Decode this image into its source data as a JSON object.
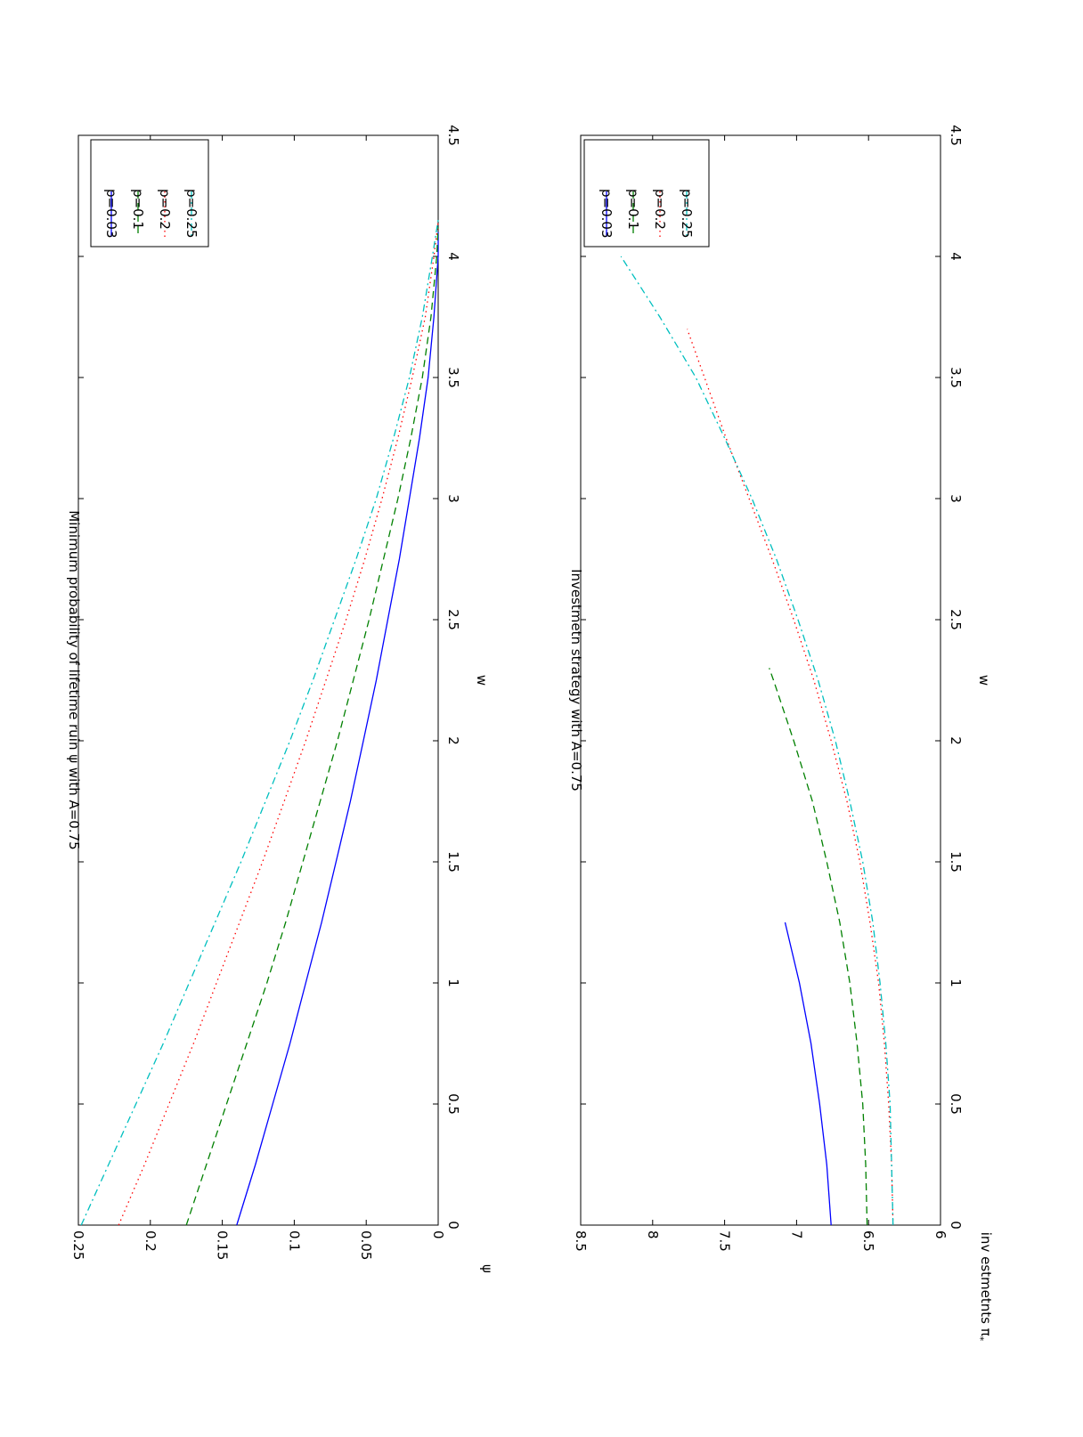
{
  "colors": {
    "p003": "#0000ff",
    "p01": "#008000",
    "p02": "#ff0000",
    "p025": "#00bfbf",
    "axes": "#000000",
    "background": "#ffffff"
  },
  "figure_orientation": "rotated 90 degrees clockwise (page is a landscape figure printed in portrait)",
  "chart_data": [
    {
      "type": "line",
      "title": "Minimum probability of lifetime ruin ψ with A=0.75",
      "xlabel": "w",
      "ylabel": "ψ",
      "xlim": [
        0,
        4.5
      ],
      "ylim": [
        0,
        0.25
      ],
      "xticks": [
        "0",
        "0.5",
        "1",
        "1.5",
        "2",
        "2.5",
        "3",
        "3.5",
        "4",
        "4.5"
      ],
      "yticks": [
        "0",
        "0.05",
        "0.1",
        "0.15",
        "0.2",
        "0.25"
      ],
      "grid": false,
      "legend": "top-right",
      "series": [
        {
          "name": "p=0.03",
          "color_key": "p003",
          "style": "solid",
          "x": [
            0,
            0.25,
            0.5,
            0.75,
            1,
            1.25,
            1.5,
            1.75,
            2,
            2.25,
            2.5,
            2.75,
            3,
            3.25,
            3.5,
            3.75,
            4,
            4.1
          ],
          "y": [
            0.14,
            0.127,
            0.115,
            0.103,
            0.092,
            0.081,
            0.071,
            0.061,
            0.052,
            0.043,
            0.035,
            0.027,
            0.02,
            0.013,
            0.007,
            0.003,
            0.0,
            0.0
          ]
        },
        {
          "name": "p=0.1",
          "color_key": "p01",
          "style": "dashed",
          "x": [
            0,
            0.25,
            0.5,
            0.75,
            1,
            1.25,
            1.5,
            1.75,
            2,
            2.25,
            2.5,
            2.75,
            3,
            3.25,
            3.5,
            3.75,
            4,
            4.12
          ],
          "y": [
            0.175,
            0.161,
            0.147,
            0.133,
            0.119,
            0.106,
            0.094,
            0.082,
            0.07,
            0.059,
            0.048,
            0.038,
            0.028,
            0.019,
            0.011,
            0.005,
            0.001,
            0.0
          ]
        },
        {
          "name": "p=0.2",
          "color_key": "p02",
          "style": "dotted",
          "x": [
            0,
            0.25,
            0.5,
            0.75,
            1,
            1.25,
            1.5,
            1.75,
            2,
            2.25,
            2.5,
            2.75,
            3,
            3.25,
            3.5,
            3.75,
            4,
            4.14
          ],
          "y": [
            0.222,
            0.204,
            0.187,
            0.17,
            0.154,
            0.138,
            0.122,
            0.107,
            0.092,
            0.078,
            0.064,
            0.051,
            0.039,
            0.028,
            0.018,
            0.009,
            0.003,
            0.0
          ]
        },
        {
          "name": "p=0.25",
          "color_key": "p025",
          "style": "dashdot",
          "x": [
            0,
            0.25,
            0.5,
            0.75,
            1,
            1.25,
            1.5,
            1.75,
            2,
            2.25,
            2.5,
            2.75,
            3,
            3.25,
            3.5,
            3.75,
            4,
            4.15
          ],
          "y": [
            0.248,
            0.229,
            0.21,
            0.191,
            0.173,
            0.155,
            0.137,
            0.12,
            0.103,
            0.087,
            0.072,
            0.057,
            0.043,
            0.031,
            0.02,
            0.011,
            0.004,
            0.0
          ]
        }
      ]
    },
    {
      "type": "line",
      "title": "Investmetn strategy with A=0.75",
      "xlabel": "w",
      "ylabel": "inv estmetnts π",
      "ylabel_subscript": "*",
      "xlim": [
        0,
        4.5
      ],
      "ylim": [
        6,
        8.5
      ],
      "xticks": [
        "0",
        "0.5",
        "1",
        "1.5",
        "2",
        "2.5",
        "3",
        "3.5",
        "4",
        "4.5"
      ],
      "yticks": [
        "6",
        "6.5",
        "7",
        "7.5",
        "8",
        "8.5"
      ],
      "grid": false,
      "legend": "top-right",
      "series": [
        {
          "name": "p=0.03",
          "color_key": "p003",
          "style": "solid",
          "x": [
            0,
            0.25,
            0.5,
            0.75,
            1,
            1.25
          ],
          "y": [
            6.76,
            6.79,
            6.84,
            6.9,
            6.98,
            7.08
          ]
        },
        {
          "name": "p=0.1",
          "color_key": "p01",
          "style": "dashed",
          "x": [
            0,
            0.25,
            0.5,
            0.75,
            1,
            1.25,
            1.5,
            1.75,
            2,
            2.25,
            2.3
          ],
          "y": [
            6.51,
            6.52,
            6.54,
            6.58,
            6.63,
            6.7,
            6.79,
            6.89,
            7.02,
            7.16,
            7.19
          ]
        },
        {
          "name": "p=0.2",
          "color_key": "p02",
          "style": "dotted",
          "x": [
            0,
            0.25,
            0.5,
            0.75,
            1,
            1.25,
            1.5,
            1.75,
            2,
            2.25,
            2.5,
            2.75,
            3,
            3.25,
            3.5,
            3.7
          ],
          "y": [
            6.33,
            6.34,
            6.36,
            6.39,
            6.43,
            6.49,
            6.56,
            6.65,
            6.76,
            6.88,
            7.02,
            7.17,
            7.33,
            7.49,
            7.64,
            7.76
          ]
        },
        {
          "name": "p=0.25",
          "color_key": "p025",
          "style": "dashdot",
          "x": [
            0,
            0.25,
            0.5,
            0.75,
            1,
            1.25,
            1.5,
            1.75,
            2,
            2.25,
            2.5,
            2.75,
            3,
            3.25,
            3.5,
            3.75,
            4
          ],
          "y": [
            6.33,
            6.34,
            6.35,
            6.38,
            6.42,
            6.47,
            6.54,
            6.63,
            6.73,
            6.85,
            6.99,
            7.14,
            7.31,
            7.5,
            7.7,
            7.95,
            8.22
          ]
        }
      ]
    }
  ]
}
